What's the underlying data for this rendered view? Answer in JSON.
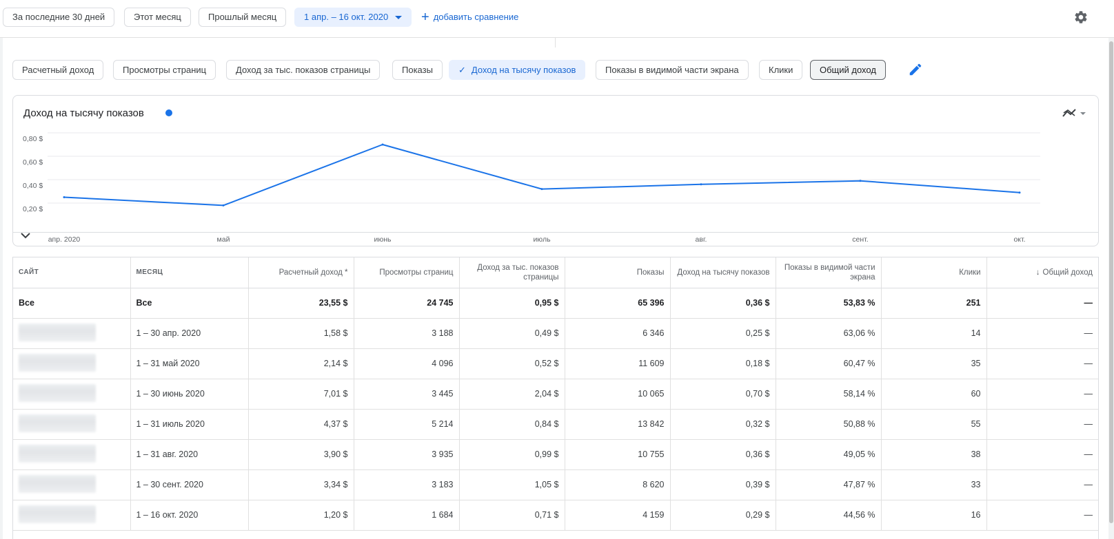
{
  "date_bar": {
    "presets": [
      "За последние 30 дней",
      "Этот месяц",
      "Прошлый месяц"
    ],
    "date_range": "1 апр. – 16 окт. 2020",
    "add_comparison": "добавить сравнение"
  },
  "metrics": {
    "items": [
      "Расчетный доход",
      "Просмотры страниц",
      "Доход за тыс. показов страницы",
      "Показы",
      "Доход на тысячу показов",
      "Показы в видимой части экрана",
      "Клики",
      "Общий доход"
    ],
    "active": "Доход на тысячу показов",
    "selected": "Общий доход"
  },
  "chart": {
    "title": "Доход на тысячу показов",
    "series_color": "#1a73e8"
  },
  "chart_data": {
    "type": "line",
    "title": "Доход на тысячу показов",
    "x": [
      "апр. 2020",
      "май",
      "июнь",
      "июль",
      "авг.",
      "сент.",
      "окт."
    ],
    "x_tick_labels": [
      "апр. 2020",
      "май",
      "июнь",
      "июль",
      "авг.",
      "сент.",
      "окт."
    ],
    "y_tick_labels": [
      "0,80 $",
      "0,60 $",
      "0,40 $",
      "0,20 $"
    ],
    "y_ticks": [
      0.8,
      0.6,
      0.4,
      0.2
    ],
    "series": [
      {
        "values": [
          0.25,
          0.18,
          0.7,
          0.32,
          0.36,
          0.39,
          0.29
        ]
      }
    ],
    "ylim": [
      0,
      0.8
    ],
    "grid": true
  },
  "table": {
    "headers": [
      "САЙТ",
      "МЕСЯЦ",
      "Расчетный доход *",
      "Просмотры страниц",
      "Доход за тыс. показов страницы",
      "Показы",
      "Доход на тысячу показов",
      "Показы в видимой части экрана",
      "Клики",
      "Общий доход"
    ],
    "total": [
      "Все",
      "Все",
      "23,55 $",
      "24 745",
      "0,95 $",
      "65 396",
      "0,36 $",
      "53,83 %",
      "251",
      "—"
    ],
    "rows": [
      [
        "",
        "1 – 30 апр. 2020",
        "1,58 $",
        "3 188",
        "0,49 $",
        "6 346",
        "0,25 $",
        "63,06 %",
        "14",
        "—"
      ],
      [
        "",
        "1 – 31 май 2020",
        "2,14 $",
        "4 096",
        "0,52 $",
        "11 609",
        "0,18 $",
        "60,47 %",
        "35",
        "—"
      ],
      [
        "",
        "1 – 30 июнь 2020",
        "7,01 $",
        "3 445",
        "2,04 $",
        "10 065",
        "0,70 $",
        "58,14 %",
        "60",
        "—"
      ],
      [
        "",
        "1 – 31 июль 2020",
        "4,37 $",
        "5 214",
        "0,84 $",
        "13 842",
        "0,32 $",
        "50,88 %",
        "55",
        "—"
      ],
      [
        "",
        "1 – 31 авг. 2020",
        "3,90 $",
        "3 935",
        "0,99 $",
        "10 755",
        "0,36 $",
        "49,05 %",
        "38",
        "—"
      ],
      [
        "",
        "1 – 30 сент. 2020",
        "3,34 $",
        "3 183",
        "1,05 $",
        "8 620",
        "0,39 $",
        "47,87 %",
        "33",
        "—"
      ],
      [
        "",
        "1 – 16 окт. 2020",
        "1,20 $",
        "1 684",
        "0,71 $",
        "4 159",
        "0,29 $",
        "44,56 %",
        "16",
        "—"
      ]
    ],
    "sort_column": "Общий доход",
    "sort_direction": "descending"
  }
}
